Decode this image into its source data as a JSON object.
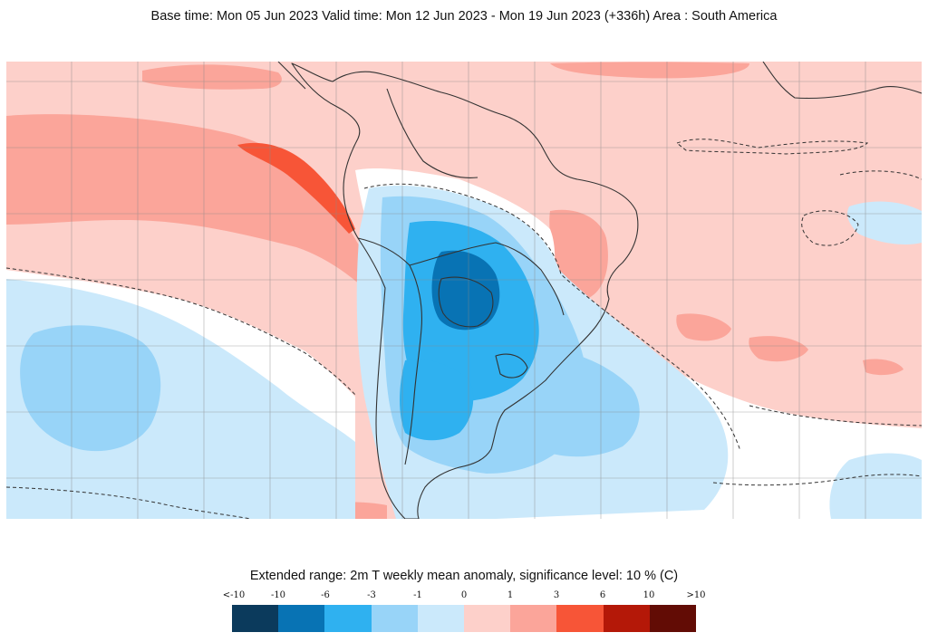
{
  "header": {
    "title": "Base time: Mon 05 Jun 2023 Valid time: Mon 12 Jun 2023 - Mon 19 Jun 2023 (+336h) Area : South America"
  },
  "map": {
    "area": "South America",
    "background_color": "#fdd0ca",
    "land_outline_color": "#333333",
    "grid_color": "#888888",
    "significance_contour_color": "#333333"
  },
  "legend": {
    "title": "Extended range: 2m T weekly mean anomaly, significance level: 10 % (C)",
    "labels": [
      "<-10",
      "-10",
      "-6",
      "-3",
      "-1",
      "0",
      "1",
      "3",
      "6",
      "10",
      ">10"
    ],
    "colors": [
      "#0b3a5c",
      "#0873b4",
      "#2fb1f0",
      "#98d4f8",
      "#cbe9fb",
      "#fdd0ca",
      "#fba59a",
      "#f75537",
      "#b41808",
      "#620c05"
    ]
  }
}
